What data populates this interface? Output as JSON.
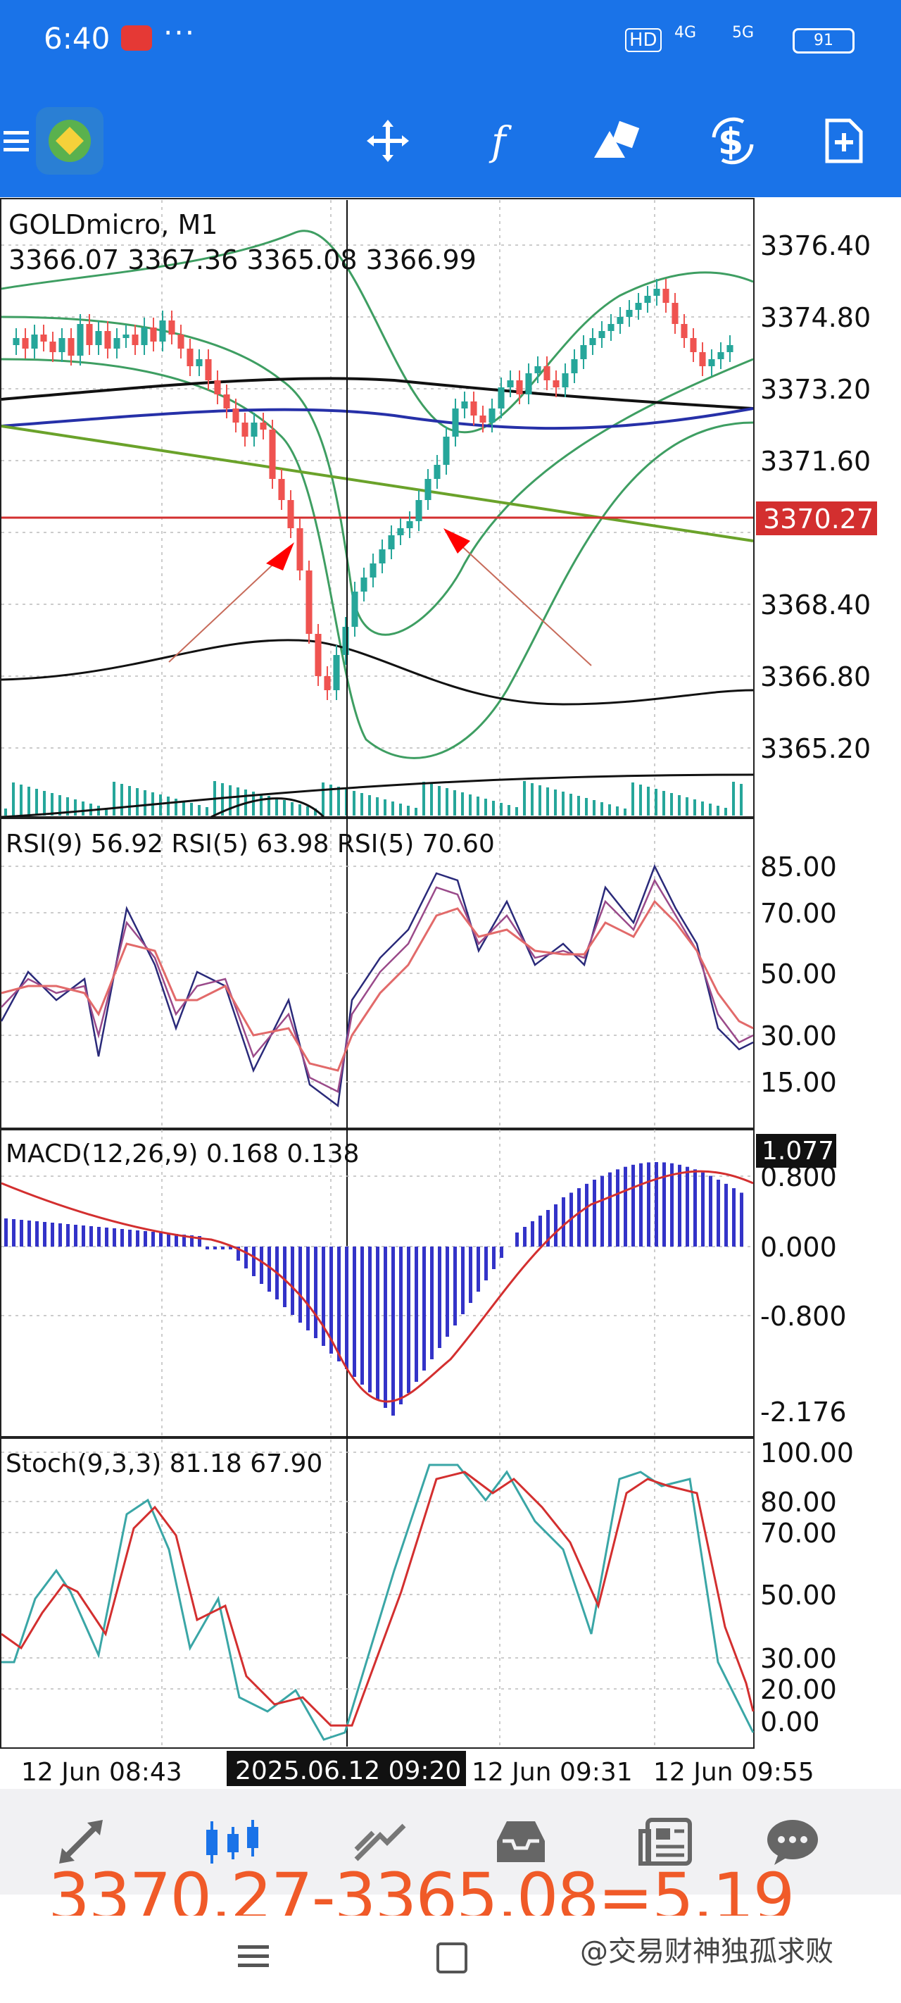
{
  "status_bar": {
    "time": "6:40",
    "dots": "···",
    "hd_label": "HD",
    "net1": "4G",
    "net2": "5G",
    "battery": "91"
  },
  "toolbar": {
    "icons": [
      "menu-icon",
      "app-logo-icon",
      "crosshair-icon",
      "function-icon",
      "objects-icon",
      "trade-icon",
      "new-order-icon"
    ]
  },
  "main_chart": {
    "symbol": "GOLDmicro, M1",
    "ohlc": "3366.07 3367.36 3365.08 3366.99",
    "price_labels": [
      "3376.40",
      "3374.80",
      "3373.20",
      "3371.60",
      "3368.40",
      "3366.80",
      "3365.20"
    ],
    "current_price": "3370.27",
    "current_price_color": "#d32f2f"
  },
  "rsi": {
    "legend": "RSI(9) 56.92 RSI(5) 63.98 RSI(5) 70.60",
    "levels": [
      "85.00",
      "70.00",
      "50.00",
      "30.00",
      "15.00"
    ]
  },
  "macd": {
    "legend": "MACD(12,26,9) 0.168 0.138",
    "max_label": "1.077",
    "levels": [
      "0.800",
      "0.000",
      "-0.800",
      "-2.176"
    ]
  },
  "stoch": {
    "legend": "Stoch(9,3,3) 81.18 67.90",
    "levels": [
      "100.00",
      "80.00",
      "70.00",
      "50.00",
      "30.00",
      "20.00",
      "0.00"
    ]
  },
  "time_axis": {
    "labels": [
      "12 Jun 08:43",
      "12 Jun 09:31",
      "12 Jun 09:55"
    ],
    "cursor_label": "2025.06.12 09:20"
  },
  "bottom_nav": {
    "items": [
      "quotes-icon",
      "chart-icon",
      "trade-icon",
      "history-icon",
      "news-icon",
      "chat-icon"
    ]
  },
  "overlay": {
    "formula": "3370.27-3365.08=5.19"
  },
  "watermark": "@交易财神独孤求败",
  "colors": {
    "accent": "#1a73e8",
    "bull": "#26a69a",
    "bear": "#ef5350",
    "formula": "#f05a28"
  }
}
